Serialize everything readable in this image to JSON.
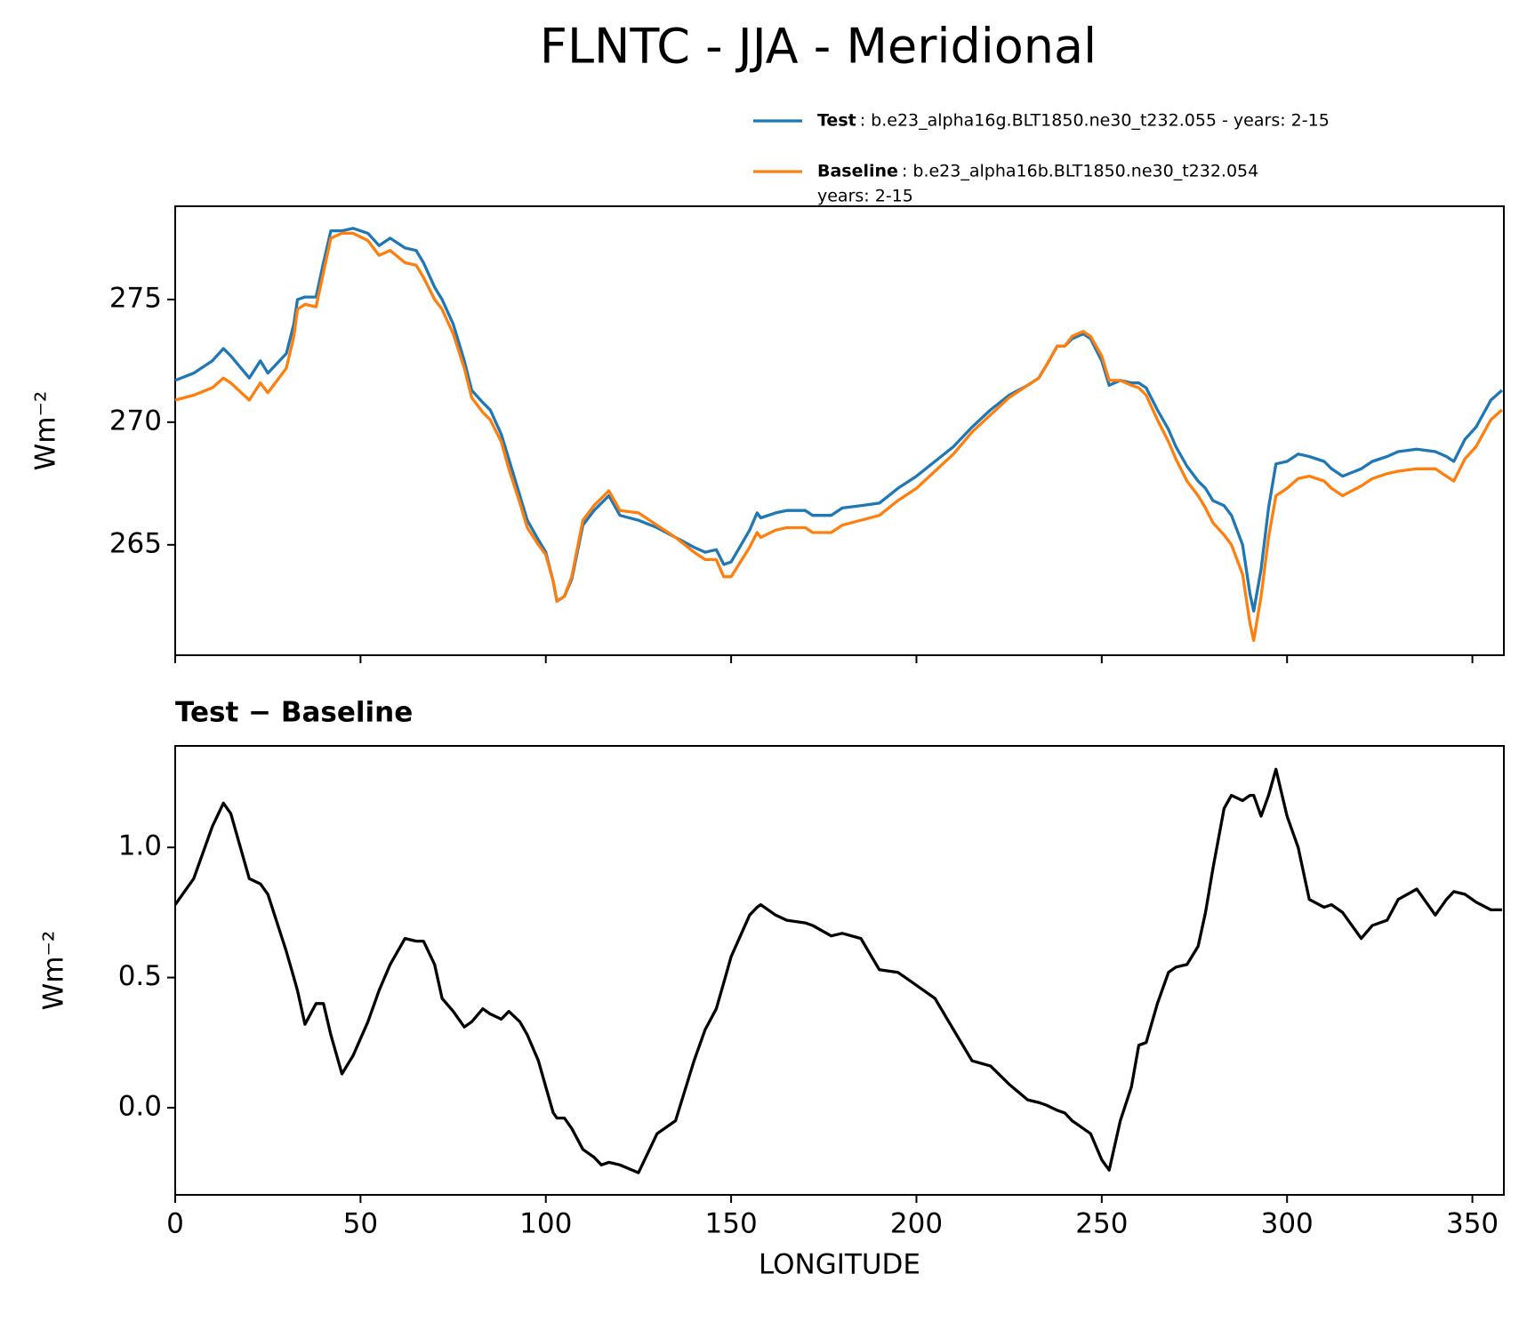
{
  "title": "FLNTC - JJA - Meridional",
  "chart_data": [
    {
      "type": "line",
      "ylabel": "Wm⁻²",
      "xlim": [
        0,
        358.5
      ],
      "ylim": [
        260.5,
        278.8
      ],
      "xticks": [
        0,
        50,
        100,
        150,
        200,
        250,
        300,
        350
      ],
      "xtick_labels": false,
      "yticks": [
        265,
        270,
        275
      ],
      "legend": "upper right",
      "x": [
        0,
        5,
        10,
        13,
        15,
        20,
        23,
        25,
        30,
        32,
        33,
        35,
        38,
        40,
        42,
        45,
        48,
        52,
        55,
        58,
        62,
        65,
        67,
        70,
        72,
        75,
        78,
        80,
        83,
        85,
        88,
        90,
        93,
        95,
        98,
        100,
        102,
        103,
        105,
        107,
        110,
        113,
        115,
        117,
        120,
        125,
        130,
        135,
        140,
        143,
        146,
        148,
        150,
        155,
        157,
        158,
        162,
        165,
        170,
        172,
        177,
        180,
        185,
        190,
        195,
        200,
        205,
        210,
        215,
        220,
        225,
        230,
        233,
        235,
        238,
        240,
        242,
        245,
        247,
        250,
        252,
        255,
        258,
        260,
        262,
        265,
        268,
        270,
        273,
        276,
        278,
        280,
        283,
        285,
        288,
        290,
        291,
        293,
        295,
        297,
        300,
        303,
        306,
        310,
        312,
        315,
        320,
        323,
        327,
        330,
        335,
        340,
        343,
        345,
        348,
        351,
        355,
        358
      ],
      "series": [
        {
          "name": "Test",
          "description": [
            ": b.e23_alpha16g.BLT1850.ne30_t232.055 - years: 2-15"
          ],
          "color": "#1f77b4",
          "values": [
            271.7,
            272.0,
            272.5,
            273.0,
            272.7,
            271.8,
            272.5,
            272.0,
            272.8,
            274.0,
            275.0,
            275.1,
            275.1,
            276.5,
            277.8,
            277.8,
            277.9,
            277.7,
            277.2,
            277.5,
            277.1,
            277.0,
            276.5,
            275.5,
            275.0,
            274.0,
            272.5,
            271.3,
            270.8,
            270.5,
            269.5,
            268.5,
            267.0,
            266.0,
            265.2,
            264.7,
            263.5,
            262.7,
            262.9,
            263.6,
            265.8,
            266.4,
            266.7,
            267.0,
            266.2,
            266.0,
            265.7,
            265.3,
            264.9,
            264.7,
            264.8,
            264.2,
            264.3,
            265.6,
            266.3,
            266.1,
            266.3,
            266.4,
            266.4,
            266.2,
            266.2,
            266.5,
            266.6,
            266.7,
            267.3,
            267.8,
            268.4,
            269.0,
            269.8,
            270.5,
            271.1,
            271.5,
            271.8,
            272.3,
            273.1,
            273.1,
            273.4,
            273.6,
            273.4,
            272.5,
            271.5,
            271.7,
            271.6,
            271.6,
            271.4,
            270.5,
            269.7,
            269.0,
            268.2,
            267.6,
            267.3,
            266.8,
            266.6,
            266.2,
            265.0,
            263.0,
            262.3,
            264.0,
            266.5,
            268.3,
            268.4,
            268.7,
            268.6,
            268.4,
            268.1,
            267.8,
            268.1,
            268.4,
            268.6,
            268.8,
            268.9,
            268.8,
            268.6,
            268.4,
            269.3,
            269.8,
            270.9,
            271.3
          ]
        },
        {
          "name": "Baseline",
          "description": [
            ": b.e23_alpha16b.BLT1850.ne30_t232.054",
            "years: 2-15"
          ],
          "color": "#ff7f0e",
          "values": [
            270.9,
            271.1,
            271.4,
            271.8,
            271.6,
            270.9,
            271.6,
            271.2,
            272.2,
            273.5,
            274.6,
            274.8,
            274.7,
            276.1,
            277.5,
            277.7,
            277.7,
            277.4,
            276.8,
            277.0,
            276.5,
            276.4,
            275.9,
            275.0,
            274.6,
            273.6,
            272.2,
            271.0,
            270.4,
            270.1,
            269.2,
            268.1,
            266.7,
            265.7,
            265.0,
            264.6,
            263.5,
            262.7,
            262.9,
            263.7,
            266.0,
            266.6,
            266.9,
            267.2,
            266.4,
            266.3,
            265.8,
            265.3,
            264.7,
            264.4,
            264.4,
            263.7,
            263.7,
            264.9,
            265.5,
            265.3,
            265.6,
            265.7,
            265.7,
            265.5,
            265.5,
            265.8,
            266.0,
            266.2,
            266.8,
            267.3,
            268.0,
            268.7,
            269.6,
            270.3,
            271.0,
            271.5,
            271.8,
            272.3,
            273.1,
            273.1,
            273.5,
            273.7,
            273.5,
            272.7,
            271.7,
            271.7,
            271.5,
            271.4,
            271.1,
            270.1,
            269.2,
            268.5,
            267.6,
            267.0,
            266.5,
            265.9,
            265.4,
            265.0,
            263.8,
            261.8,
            261.1,
            262.9,
            265.3,
            267.0,
            267.3,
            267.7,
            267.8,
            267.6,
            267.3,
            267.0,
            267.4,
            267.7,
            267.9,
            268.0,
            268.1,
            268.1,
            267.8,
            267.6,
            268.5,
            269.0,
            270.1,
            270.5
          ]
        }
      ]
    },
    {
      "type": "line",
      "title": "Test − Baseline",
      "xlabel": "LONGITUDE",
      "ylabel": "Wm⁻²",
      "xlim": [
        0,
        358.5
      ],
      "ylim": [
        -0.335,
        1.39
      ],
      "xticks": [
        0,
        50,
        100,
        150,
        200,
        250,
        300,
        350
      ],
      "yticks": [
        {
          "value": 0,
          "label": "0.0"
        },
        0.5,
        {
          "value": 1,
          "label": "1.0"
        }
      ],
      "color": "#000000",
      "x": [
        0,
        5,
        10,
        13,
        15,
        20,
        23,
        25,
        30,
        32,
        33,
        35,
        38,
        40,
        42,
        45,
        48,
        52,
        55,
        58,
        62,
        65,
        67,
        70,
        72,
        75,
        78,
        80,
        83,
        85,
        88,
        90,
        93,
        95,
        98,
        100,
        102,
        103,
        105,
        107,
        110,
        113,
        115,
        117,
        120,
        125,
        130,
        135,
        140,
        143,
        146,
        148,
        150,
        155,
        157,
        158,
        162,
        165,
        170,
        172,
        177,
        180,
        185,
        190,
        195,
        200,
        205,
        210,
        215,
        220,
        225,
        230,
        233,
        235,
        238,
        240,
        242,
        245,
        247,
        250,
        252,
        255,
        258,
        260,
        262,
        265,
        268,
        270,
        273,
        276,
        278,
        280,
        283,
        285,
        288,
        290,
        291,
        293,
        295,
        297,
        300,
        303,
        306,
        310,
        312,
        315,
        320,
        323,
        327,
        330,
        335,
        340,
        343,
        345,
        348,
        351,
        355,
        358
      ],
      "values": [
        0.78,
        0.88,
        1.08,
        1.17,
        1.13,
        0.88,
        0.86,
        0.82,
        0.6,
        0.5,
        0.45,
        0.32,
        0.4,
        0.4,
        0.28,
        0.13,
        0.2,
        0.33,
        0.45,
        0.55,
        0.65,
        0.64,
        0.64,
        0.55,
        0.42,
        0.37,
        0.31,
        0.33,
        0.38,
        0.36,
        0.34,
        0.37,
        0.33,
        0.28,
        0.18,
        0.08,
        -0.02,
        -0.04,
        -0.04,
        -0.08,
        -0.16,
        -0.19,
        -0.22,
        -0.21,
        -0.22,
        -0.25,
        -0.1,
        -0.05,
        0.18,
        0.3,
        0.38,
        0.48,
        0.58,
        0.74,
        0.77,
        0.78,
        0.74,
        0.72,
        0.71,
        0.7,
        0.66,
        0.67,
        0.65,
        0.53,
        0.52,
        0.47,
        0.42,
        0.3,
        0.18,
        0.16,
        0.09,
        0.03,
        0.02,
        0.01,
        -0.01,
        -0.02,
        -0.05,
        -0.08,
        -0.1,
        -0.2,
        -0.24,
        -0.05,
        0.08,
        0.24,
        0.25,
        0.4,
        0.52,
        0.54,
        0.55,
        0.62,
        0.75,
        0.92,
        1.15,
        1.2,
        1.18,
        1.2,
        1.2,
        1.12,
        1.2,
        1.3,
        1.12,
        1.0,
        0.8,
        0.77,
        0.78,
        0.75,
        0.65,
        0.7,
        0.72,
        0.8,
        0.84,
        0.74,
        0.8,
        0.83,
        0.82,
        0.79,
        0.76,
        0.76
      ]
    }
  ]
}
